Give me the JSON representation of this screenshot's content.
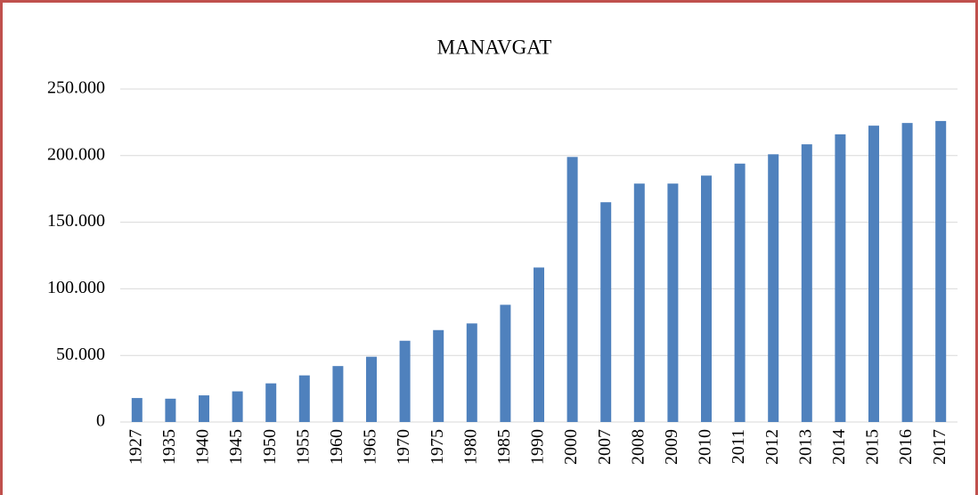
{
  "chart_data": {
    "type": "bar",
    "title": "MANAVGAT",
    "categories": [
      "1927",
      "1935",
      "1940",
      "1945",
      "1950",
      "1955",
      "1960",
      "1965",
      "1970",
      "1975",
      "1980",
      "1985",
      "1990",
      "2000",
      "2007",
      "2008",
      "2009",
      "2010",
      "2011",
      "2012",
      "2013",
      "2014",
      "2015",
      "2016",
      "2017"
    ],
    "values": [
      18000,
      17500,
      20000,
      23000,
      29000,
      35000,
      42000,
      49000,
      61000,
      69000,
      74000,
      88000,
      116000,
      199000,
      165000,
      179000,
      179000,
      185000,
      194000,
      201000,
      208500,
      216000,
      222500,
      224500,
      226000
    ],
    "color": "#4f81bd",
    "ylim": [
      0,
      250000
    ],
    "yticks": [
      0,
      {
        "value": 50000,
        "label": "50.000"
      },
      {
        "value": 100000,
        "label": "100.000"
      },
      {
        "value": 150000,
        "label": "150.000"
      },
      {
        "value": 200000,
        "label": "200.000"
      },
      {
        "value": 250000,
        "label": "250.000"
      }
    ],
    "grid": true
  }
}
